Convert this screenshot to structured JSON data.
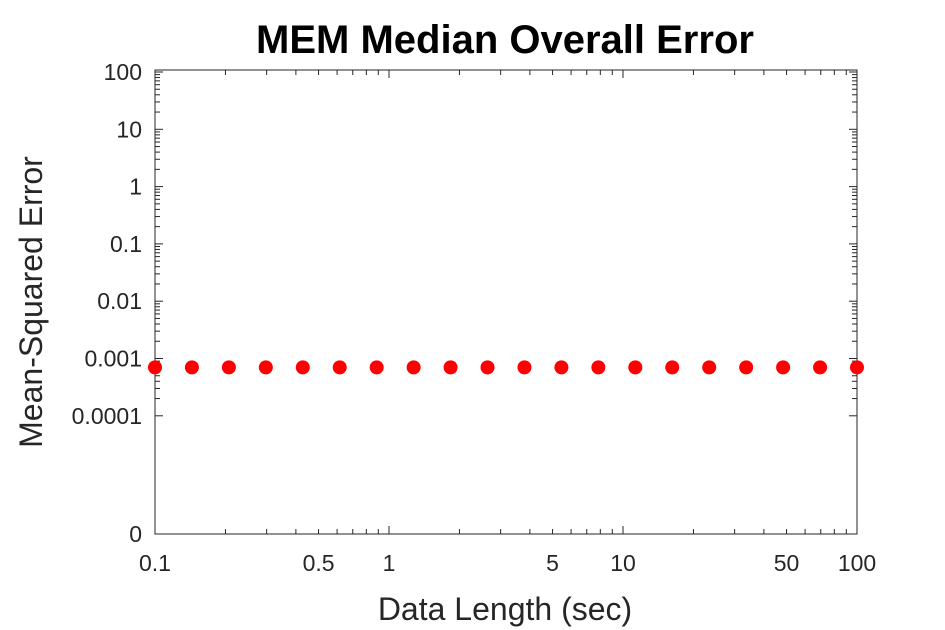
{
  "chart_data": {
    "type": "scatter",
    "title": "MEM Median Overall Error",
    "xlabel": "Data Length (sec)",
    "ylabel": "Mean-Squared Error",
    "x_scale": "log",
    "y_scale": "log",
    "xlim": [
      0.1,
      100
    ],
    "x_ticks": [
      0.1,
      0.5,
      1,
      5,
      10,
      50,
      100
    ],
    "x_tick_labels": [
      "0.1",
      "0.5",
      "1",
      "5",
      "10",
      "50",
      "100"
    ],
    "y_ticks": [
      0,
      0.0001,
      0.001,
      0.01,
      0.1,
      1,
      10,
      100
    ],
    "y_tick_labels": [
      "0",
      "0.0001",
      "0.001",
      "0.01",
      "0.1",
      "1",
      "10",
      "100"
    ],
    "marker_color": "#ff0000",
    "series": [
      {
        "x": [
          0.1,
          0.1438,
          0.2069,
          0.2976,
          0.4281,
          0.6158,
          0.8859,
          1.2743,
          1.833,
          2.6367,
          3.7927,
          5.4556,
          7.8476,
          11.2884,
          16.2378,
          23.3572,
          33.5982,
          48.3293,
          69.5193,
          100
        ],
        "y": [
          0.0007,
          0.0007,
          0.0007,
          0.0007,
          0.0007,
          0.0007,
          0.0007,
          0.0007,
          0.0007,
          0.0007,
          0.0007,
          0.0007,
          0.0007,
          0.0007,
          0.0007,
          0.0007,
          0.0007,
          0.0007,
          0.0007,
          0.0007
        ]
      }
    ]
  }
}
